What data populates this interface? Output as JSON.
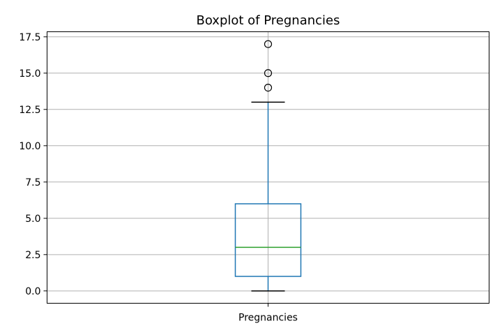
{
  "chart_data": {
    "type": "boxplot",
    "title": "Boxplot of Pregnancies",
    "xlabel": "",
    "ylabel": "",
    "categories": [
      "Pregnancies"
    ],
    "ylim": [
      -0.85,
      17.85
    ],
    "yticks": [
      0.0,
      2.5,
      5.0,
      7.5,
      10.0,
      12.5,
      15.0,
      17.5
    ],
    "ytick_labels": [
      "0.0",
      "2.5",
      "5.0",
      "7.5",
      "10.0",
      "12.5",
      "15.0",
      "17.5"
    ],
    "grid": true,
    "boxes": [
      {
        "whisker_low": 0,
        "q1": 1,
        "median": 3,
        "q3": 6,
        "whisker_high": 13,
        "outliers": [
          14,
          15,
          17
        ]
      }
    ],
    "colors": {
      "box": "#1f77b4",
      "median": "#2ca02c",
      "whisker": "#1f77b4",
      "cap": "#000000",
      "outlier": "#000000",
      "grid": "#b0b0b0"
    }
  }
}
